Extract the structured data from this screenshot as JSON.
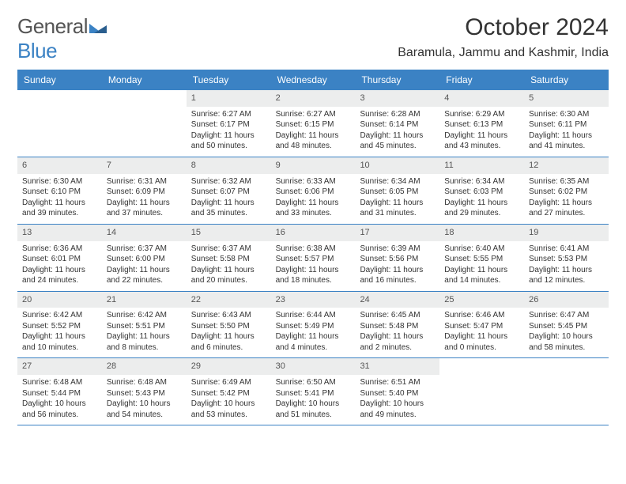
{
  "brand": {
    "part1": "General",
    "part2": "Blue"
  },
  "title": "October 2024",
  "location": "Baramula, Jammu and Kashmir, India",
  "colors": {
    "header_bg": "#3b82c4",
    "daynum_bg": "#eceded",
    "text": "#333333",
    "logo_gray": "#555555",
    "logo_blue": "#3b82c4"
  },
  "weekdays": [
    "Sunday",
    "Monday",
    "Tuesday",
    "Wednesday",
    "Thursday",
    "Friday",
    "Saturday"
  ],
  "weeks": [
    [
      {
        "n": "",
        "sr": "",
        "ss": "",
        "dl": ""
      },
      {
        "n": "",
        "sr": "",
        "ss": "",
        "dl": ""
      },
      {
        "n": "1",
        "sr": "Sunrise: 6:27 AM",
        "ss": "Sunset: 6:17 PM",
        "dl": "Daylight: 11 hours and 50 minutes."
      },
      {
        "n": "2",
        "sr": "Sunrise: 6:27 AM",
        "ss": "Sunset: 6:15 PM",
        "dl": "Daylight: 11 hours and 48 minutes."
      },
      {
        "n": "3",
        "sr": "Sunrise: 6:28 AM",
        "ss": "Sunset: 6:14 PM",
        "dl": "Daylight: 11 hours and 45 minutes."
      },
      {
        "n": "4",
        "sr": "Sunrise: 6:29 AM",
        "ss": "Sunset: 6:13 PM",
        "dl": "Daylight: 11 hours and 43 minutes."
      },
      {
        "n": "5",
        "sr": "Sunrise: 6:30 AM",
        "ss": "Sunset: 6:11 PM",
        "dl": "Daylight: 11 hours and 41 minutes."
      }
    ],
    [
      {
        "n": "6",
        "sr": "Sunrise: 6:30 AM",
        "ss": "Sunset: 6:10 PM",
        "dl": "Daylight: 11 hours and 39 minutes."
      },
      {
        "n": "7",
        "sr": "Sunrise: 6:31 AM",
        "ss": "Sunset: 6:09 PM",
        "dl": "Daylight: 11 hours and 37 minutes."
      },
      {
        "n": "8",
        "sr": "Sunrise: 6:32 AM",
        "ss": "Sunset: 6:07 PM",
        "dl": "Daylight: 11 hours and 35 minutes."
      },
      {
        "n": "9",
        "sr": "Sunrise: 6:33 AM",
        "ss": "Sunset: 6:06 PM",
        "dl": "Daylight: 11 hours and 33 minutes."
      },
      {
        "n": "10",
        "sr": "Sunrise: 6:34 AM",
        "ss": "Sunset: 6:05 PM",
        "dl": "Daylight: 11 hours and 31 minutes."
      },
      {
        "n": "11",
        "sr": "Sunrise: 6:34 AM",
        "ss": "Sunset: 6:03 PM",
        "dl": "Daylight: 11 hours and 29 minutes."
      },
      {
        "n": "12",
        "sr": "Sunrise: 6:35 AM",
        "ss": "Sunset: 6:02 PM",
        "dl": "Daylight: 11 hours and 27 minutes."
      }
    ],
    [
      {
        "n": "13",
        "sr": "Sunrise: 6:36 AM",
        "ss": "Sunset: 6:01 PM",
        "dl": "Daylight: 11 hours and 24 minutes."
      },
      {
        "n": "14",
        "sr": "Sunrise: 6:37 AM",
        "ss": "Sunset: 6:00 PM",
        "dl": "Daylight: 11 hours and 22 minutes."
      },
      {
        "n": "15",
        "sr": "Sunrise: 6:37 AM",
        "ss": "Sunset: 5:58 PM",
        "dl": "Daylight: 11 hours and 20 minutes."
      },
      {
        "n": "16",
        "sr": "Sunrise: 6:38 AM",
        "ss": "Sunset: 5:57 PM",
        "dl": "Daylight: 11 hours and 18 minutes."
      },
      {
        "n": "17",
        "sr": "Sunrise: 6:39 AM",
        "ss": "Sunset: 5:56 PM",
        "dl": "Daylight: 11 hours and 16 minutes."
      },
      {
        "n": "18",
        "sr": "Sunrise: 6:40 AM",
        "ss": "Sunset: 5:55 PM",
        "dl": "Daylight: 11 hours and 14 minutes."
      },
      {
        "n": "19",
        "sr": "Sunrise: 6:41 AM",
        "ss": "Sunset: 5:53 PM",
        "dl": "Daylight: 11 hours and 12 minutes."
      }
    ],
    [
      {
        "n": "20",
        "sr": "Sunrise: 6:42 AM",
        "ss": "Sunset: 5:52 PM",
        "dl": "Daylight: 11 hours and 10 minutes."
      },
      {
        "n": "21",
        "sr": "Sunrise: 6:42 AM",
        "ss": "Sunset: 5:51 PM",
        "dl": "Daylight: 11 hours and 8 minutes."
      },
      {
        "n": "22",
        "sr": "Sunrise: 6:43 AM",
        "ss": "Sunset: 5:50 PM",
        "dl": "Daylight: 11 hours and 6 minutes."
      },
      {
        "n": "23",
        "sr": "Sunrise: 6:44 AM",
        "ss": "Sunset: 5:49 PM",
        "dl": "Daylight: 11 hours and 4 minutes."
      },
      {
        "n": "24",
        "sr": "Sunrise: 6:45 AM",
        "ss": "Sunset: 5:48 PM",
        "dl": "Daylight: 11 hours and 2 minutes."
      },
      {
        "n": "25",
        "sr": "Sunrise: 6:46 AM",
        "ss": "Sunset: 5:47 PM",
        "dl": "Daylight: 11 hours and 0 minutes."
      },
      {
        "n": "26",
        "sr": "Sunrise: 6:47 AM",
        "ss": "Sunset: 5:45 PM",
        "dl": "Daylight: 10 hours and 58 minutes."
      }
    ],
    [
      {
        "n": "27",
        "sr": "Sunrise: 6:48 AM",
        "ss": "Sunset: 5:44 PM",
        "dl": "Daylight: 10 hours and 56 minutes."
      },
      {
        "n": "28",
        "sr": "Sunrise: 6:48 AM",
        "ss": "Sunset: 5:43 PM",
        "dl": "Daylight: 10 hours and 54 minutes."
      },
      {
        "n": "29",
        "sr": "Sunrise: 6:49 AM",
        "ss": "Sunset: 5:42 PM",
        "dl": "Daylight: 10 hours and 53 minutes."
      },
      {
        "n": "30",
        "sr": "Sunrise: 6:50 AM",
        "ss": "Sunset: 5:41 PM",
        "dl": "Daylight: 10 hours and 51 minutes."
      },
      {
        "n": "31",
        "sr": "Sunrise: 6:51 AM",
        "ss": "Sunset: 5:40 PM",
        "dl": "Daylight: 10 hours and 49 minutes."
      },
      {
        "n": "",
        "sr": "",
        "ss": "",
        "dl": ""
      },
      {
        "n": "",
        "sr": "",
        "ss": "",
        "dl": ""
      }
    ]
  ]
}
